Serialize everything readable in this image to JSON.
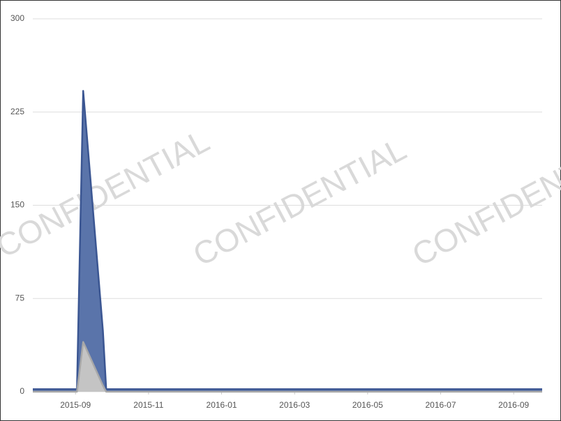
{
  "chart_data": {
    "type": "area",
    "watermark": "CONFIDENTIAL",
    "x": [
      -1.17,
      0.04,
      0.21,
      0.75,
      0.84,
      12.78
    ],
    "xlim": [
      -1.17,
      12.78
    ],
    "xticks": [
      {
        "value": 0,
        "label": "2015-09"
      },
      {
        "value": 2,
        "label": "2015-11"
      },
      {
        "value": 4,
        "label": "2016-01"
      },
      {
        "value": 6,
        "label": "2016-03"
      },
      {
        "value": 8,
        "label": "2016-05"
      },
      {
        "value": 10,
        "label": "2016-07"
      },
      {
        "value": 12,
        "label": "2016-09"
      }
    ],
    "ylim": [
      0,
      300
    ],
    "yticks": [
      0,
      75,
      150,
      225,
      300
    ],
    "grid": true,
    "series": [
      {
        "color": "#5a74aa",
        "line_color": "#3b5692",
        "values": [
          2,
          2,
          242,
          49,
          2,
          2
        ]
      },
      {
        "color": "#c4c4c4",
        "line_color": "#a8a8a8",
        "values": [
          0,
          0,
          40,
          5,
          0,
          0
        ]
      }
    ]
  }
}
